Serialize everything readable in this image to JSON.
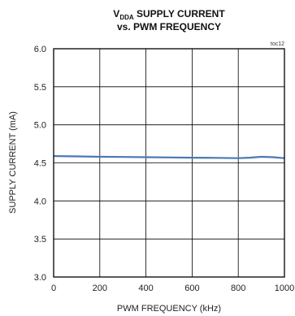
{
  "chart_data": {
    "type": "line",
    "title_line1_main": "V",
    "title_line1_sub": "DDA",
    "title_line1_rest": " SUPPLY CURRENT",
    "title_line2": "vs. PWM FREQUENCY",
    "tag": "toc12",
    "xlabel": "PWM FREQUENCY (kHz)",
    "ylabel": "SUPPLY CURRENT (mA)",
    "xlim": [
      0,
      1000
    ],
    "ylim": [
      3.0,
      6.0
    ],
    "x_ticks": [
      "0",
      "200",
      "400",
      "600",
      "800",
      "1000"
    ],
    "y_ticks": [
      "3.0",
      "3.5",
      "4.0",
      "4.5",
      "5.0",
      "5.5",
      "6.0"
    ],
    "grid": true,
    "series": [
      {
        "color": "#4a78b5",
        "x": [
          0,
          100,
          200,
          300,
          400,
          500,
          600,
          700,
          800,
          850,
          900,
          950,
          1000
        ],
        "y": [
          4.59,
          4.585,
          4.58,
          4.578,
          4.575,
          4.572,
          4.568,
          4.566,
          4.562,
          4.568,
          4.58,
          4.575,
          4.562
        ]
      }
    ]
  }
}
